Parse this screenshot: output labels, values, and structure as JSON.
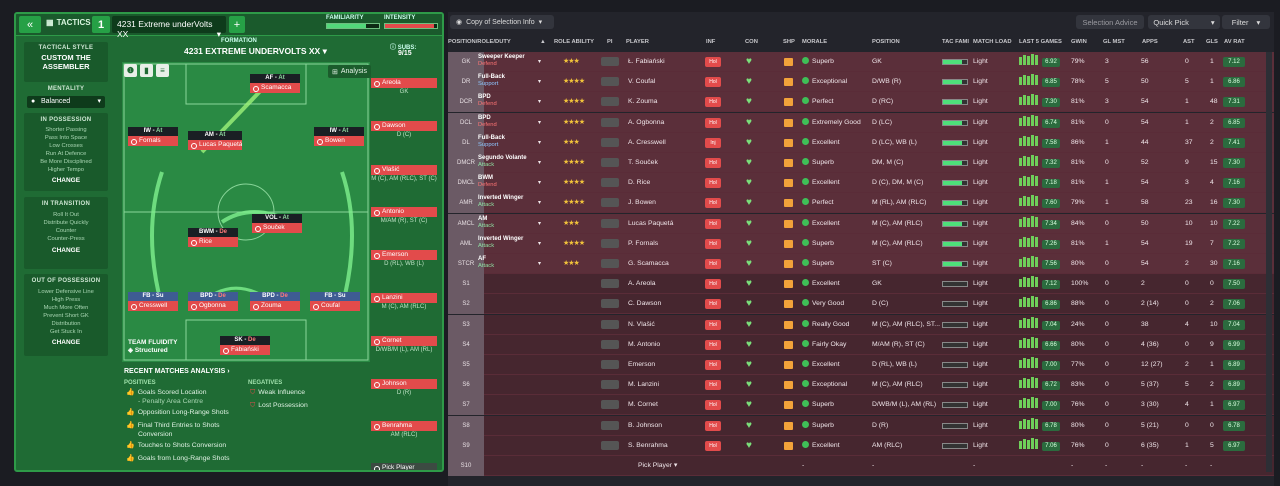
{
  "topbar": {
    "back_label": "«",
    "tactics_label": "TACTICS",
    "tactic_number": "1",
    "tactic_name": "4231 Extreme underVolts XX",
    "add_label": "+",
    "familiarity_label": "FAMILIARITY",
    "intensity_label": "INTENSITY",
    "familiarity_level": 0.75,
    "intensity_level": 0.95
  },
  "sidebar": {
    "style_label": "TACTICAL STYLE",
    "style_name": "CUSTOM THE ASSEMBLER",
    "mentality_label": "MENTALITY",
    "mentality_value": "Balanced",
    "in_possession": {
      "title": "IN POSSESSION",
      "items": [
        "Shorter Passing",
        "Pass Into Space",
        "Low Crosses",
        "Run At Defence",
        "Be More Disciplined",
        "Higher Tempo"
      ],
      "change": "CHANGE"
    },
    "in_transition": {
      "title": "IN TRANSITION",
      "items": [
        "Roll It Out",
        "Distribute Quickly",
        "Counter",
        "Counter-Press"
      ],
      "change": "CHANGE"
    },
    "out_of_possession": {
      "title": "OUT OF POSSESSION",
      "items": [
        "Lower Defensive Line",
        "High Press",
        "Much More Often",
        "Prevent Short GK",
        "Distribution",
        "Get Stuck In"
      ],
      "change": "CHANGE"
    }
  },
  "formation": {
    "label": "FORMATION",
    "name": "4231 EXTREME UNDERVOLTS XX",
    "subs_label": "SUBS:",
    "subs_count": "9/15",
    "analysis_label": "Analysis",
    "team_fluidity_label": "TEAM FLUIDITY",
    "team_fluidity_value": "Structured",
    "players": [
      {
        "role": "AF",
        "duty": "At",
        "name": "Scamacca"
      },
      {
        "role": "IW",
        "duty": "At",
        "name": "Fornals"
      },
      {
        "role": "AM",
        "duty": "At",
        "name": "Lucas Paquetá"
      },
      {
        "role": "IW",
        "duty": "At",
        "name": "Bowen"
      },
      {
        "role": "BWM",
        "duty": "De",
        "name": "Rice"
      },
      {
        "role": "VOL",
        "duty": "At",
        "name": "Souček"
      },
      {
        "role": "FB",
        "duty": "Su",
        "name": "Cresswell"
      },
      {
        "role": "BPD",
        "duty": "De",
        "name": "Ogbonna"
      },
      {
        "role": "BPD",
        "duty": "De",
        "name": "Zouma"
      },
      {
        "role": "FB",
        "duty": "Su",
        "name": "Coufal"
      },
      {
        "role": "SK",
        "duty": "De",
        "name": "Fabiański"
      }
    ],
    "subs": [
      {
        "name": "Areola",
        "pos": "GK"
      },
      {
        "name": "Dawson",
        "pos": "D (C)"
      },
      {
        "name": "Vlašić",
        "pos": "M (C), AM (RLC), ST (C)"
      },
      {
        "name": "Antonio",
        "pos": "M/AM (R), ST (C)"
      },
      {
        "name": "Emerson",
        "pos": "D (RL), WB (L)"
      },
      {
        "name": "Lanzini",
        "pos": "M (C), AM (RLC)"
      },
      {
        "name": "Cornet",
        "pos": "D/WB/M (L), AM (RL)"
      },
      {
        "name": "Johnson",
        "pos": "D (R)"
      },
      {
        "name": "Benrahma",
        "pos": "AM (RLC)"
      },
      {
        "name": "Pick Player",
        "pos": ""
      }
    ]
  },
  "analysis": {
    "title": "RECENT MATCHES ANALYSIS",
    "positives_label": "POSITIVES",
    "negatives_label": "NEGATIVES",
    "positives": [
      "Goals Scored Location",
      "- Penalty Area Centre",
      "Opposition Long-Range Shots",
      "Final Third Entries to Shots",
      "Conversion",
      "Touches to Shots Conversion",
      "Goals from Long-Range Shots"
    ],
    "negatives": [
      "Weak Influence",
      "Lost Possession"
    ]
  },
  "right": {
    "copy_label": "Copy of Selection Info",
    "advice_label": "Selection Advice",
    "quickpick_label": "Quick Pick",
    "filter_label": "Filter",
    "headers": {
      "pos": "POSITION/ROLE/DUTY",
      "ability": "ROLE ABILITY",
      "pi": "PI",
      "player": "PLAYER",
      "inf": "INF",
      "con": "CON",
      "shp": "SHP",
      "morale": "MORALE",
      "position": "POSITION",
      "tacfam": "TAC FAMI",
      "load": "MATCH LOAD",
      "last5": "LAST 5 GAMES",
      "gwin": "GWIN",
      "glmst": "GL MST",
      "apps": "APPS",
      "ast": "AST",
      "gls": "GLS",
      "avrat": "AV RAT"
    },
    "rows": [
      {
        "pos": "GK",
        "role": "Sweeper Keeper",
        "duty": "Defend",
        "dutyc": "def",
        "stars": "★★★",
        "player": "Ł. Fabiański",
        "inf": "Hol",
        "morale": "Superb",
        "position": "GK",
        "tacfam": 0.8,
        "load": "Light",
        "last5r": "6.92",
        "gwin": "79%",
        "glmst": "3",
        "apps": "56",
        "ast": "0",
        "gls": "1",
        "av": "7.12"
      },
      {
        "pos": "DR",
        "role": "Full-Back",
        "duty": "Support",
        "dutyc": "sup",
        "stars": "★★★★",
        "player": "V. Coufal",
        "inf": "Hol",
        "morale": "Exceptional",
        "position": "D/WB (R)",
        "tacfam": 0.8,
        "load": "Light",
        "last5r": "6.85",
        "gwin": "78%",
        "glmst": "5",
        "apps": "50",
        "ast": "5",
        "gls": "1",
        "av": "6.86"
      },
      {
        "pos": "DCR",
        "role": "BPD",
        "duty": "Defend",
        "dutyc": "def",
        "stars": "★★★★",
        "player": "K. Zouma",
        "inf": "Hol",
        "morale": "Perfect",
        "position": "D (RC)",
        "tacfam": 0.8,
        "load": "Light",
        "last5r": "7.30",
        "gwin": "81%",
        "glmst": "3",
        "apps": "54",
        "ast": "1",
        "gls": "48",
        "av": "7.31"
      },
      {
        "pos": "DCL",
        "role": "BPD",
        "duty": "Defend",
        "dutyc": "def",
        "stars": "★★★★",
        "player": "A. Ogbonna",
        "inf": "Hol",
        "morale": "Extremely Good",
        "position": "D (LC)",
        "tacfam": 0.8,
        "load": "Light",
        "last5r": "6.74",
        "gwin": "81%",
        "glmst": "0",
        "apps": "54",
        "ast": "1",
        "gls": "2",
        "av": "6.85"
      },
      {
        "pos": "DL",
        "role": "Full-Back",
        "duty": "Support",
        "dutyc": "sup",
        "stars": "★★★",
        "player": "A. Cresswell",
        "inf": "Inj",
        "morale": "Excellent",
        "position": "D (LC), WB (L)",
        "tacfam": 0.8,
        "load": "Light",
        "last5r": "7.58",
        "gwin": "86%",
        "glmst": "1",
        "apps": "44",
        "ast": "37",
        "gls": "2",
        "av": "7.41"
      },
      {
        "pos": "DMCR",
        "role": "Segundo Volante",
        "duty": "Attack",
        "dutyc": "att",
        "stars": "★★★★",
        "player": "T. Souček",
        "inf": "Hol",
        "morale": "Superb",
        "position": "DM, M (C)",
        "tacfam": 0.8,
        "load": "Light",
        "last5r": "7.32",
        "gwin": "81%",
        "glmst": "0",
        "apps": "52",
        "ast": "9",
        "gls": "15",
        "av": "7.30"
      },
      {
        "pos": "DMCL",
        "role": "BWM",
        "duty": "Defend",
        "dutyc": "def",
        "stars": "★★★★",
        "player": "D. Rice",
        "inf": "Hol",
        "morale": "Excellent",
        "position": "D (C), DM, M (C)",
        "tacfam": 0.8,
        "load": "Light",
        "last5r": "7.18",
        "gwin": "81%",
        "glmst": "1",
        "apps": "54",
        "ast": "3",
        "gls": "4",
        "av": "7.16"
      },
      {
        "pos": "AMR",
        "role": "Inverted Winger",
        "duty": "Attack",
        "dutyc": "att",
        "stars": "★★★★",
        "player": "J. Bowen",
        "inf": "Hol",
        "morale": "Perfect",
        "position": "M (RL), AM (RLC)",
        "tacfam": 0.8,
        "load": "Light",
        "last5r": "7.60",
        "gwin": "79%",
        "glmst": "1",
        "apps": "58",
        "ast": "23",
        "gls": "16",
        "av": "7.30"
      },
      {
        "pos": "AMCL",
        "role": "AM",
        "duty": "Attack",
        "dutyc": "att",
        "stars": "★★★",
        "player": "Lucas Paquetá",
        "inf": "Hol",
        "morale": "Excellent",
        "position": "M (C), AM (RLC)",
        "tacfam": 0.8,
        "load": "Light",
        "last5r": "7.34",
        "gwin": "84%",
        "glmst": "0",
        "apps": "50",
        "ast": "10",
        "gls": "10",
        "av": "7.22"
      },
      {
        "pos": "AML",
        "role": "Inverted Winger",
        "duty": "Attack",
        "dutyc": "att",
        "stars": "★★★★",
        "player": "P. Fornals",
        "inf": "Hol",
        "morale": "Superb",
        "position": "M (C), AM (RLC)",
        "tacfam": 0.8,
        "load": "Light",
        "last5r": "7.26",
        "gwin": "81%",
        "glmst": "1",
        "apps": "54",
        "ast": "19",
        "gls": "7",
        "av": "7.22"
      },
      {
        "pos": "STCR",
        "role": "AF",
        "duty": "Attack",
        "dutyc": "att",
        "stars": "★★★",
        "player": "G. Scamacca",
        "inf": "Hol",
        "morale": "Superb",
        "position": "ST (C)",
        "tacfam": 0.8,
        "load": "Light",
        "last5r": "7.56",
        "gwin": "80%",
        "glmst": "0",
        "apps": "54",
        "ast": "2",
        "gls": "30",
        "av": "7.16"
      },
      {
        "pos": "S1",
        "role": "",
        "duty": "",
        "dutyc": "",
        "stars": "",
        "player": "A. Areola",
        "inf": "Hol",
        "morale": "Excellent",
        "position": "GK",
        "tacfam": 0.0,
        "load": "Light",
        "last5r": "7.12",
        "gwin": "100%",
        "glmst": "0",
        "apps": "2",
        "ast": "0",
        "gls": "0",
        "av": "7.50"
      },
      {
        "pos": "S2",
        "role": "",
        "duty": "",
        "dutyc": "",
        "stars": "",
        "player": "C. Dawson",
        "inf": "Hol",
        "morale": "Very Good",
        "position": "D (C)",
        "tacfam": 0.0,
        "load": "Light",
        "last5r": "6.86",
        "gwin": "88%",
        "glmst": "0",
        "apps": "2 (14)",
        "ast": "0",
        "gls": "2",
        "av": "7.06"
      },
      {
        "pos": "S3",
        "role": "",
        "duty": "",
        "dutyc": "",
        "stars": "",
        "player": "N. Vlašić",
        "inf": "Hol",
        "morale": "Really Good",
        "position": "M (C), AM (RLC), ST...",
        "tacfam": 0.0,
        "load": "Light",
        "last5r": "7.04",
        "gwin": "24%",
        "glmst": "0",
        "apps": "38",
        "ast": "4",
        "gls": "10",
        "av": "7.04"
      },
      {
        "pos": "S4",
        "role": "",
        "duty": "",
        "dutyc": "",
        "stars": "",
        "player": "M. Antonio",
        "inf": "Hol",
        "morale": "Fairly Okay",
        "position": "M/AM (R), ST (C)",
        "tacfam": 0.0,
        "load": "Light",
        "last5r": "6.66",
        "gwin": "80%",
        "glmst": "0",
        "apps": "4 (36)",
        "ast": "0",
        "gls": "9",
        "av": "6.99"
      },
      {
        "pos": "S5",
        "role": "",
        "duty": "",
        "dutyc": "",
        "stars": "",
        "player": "Emerson",
        "inf": "Hol",
        "morale": "Excellent",
        "position": "D (RL), WB (L)",
        "tacfam": 0.0,
        "load": "Light",
        "last5r": "7.00",
        "gwin": "77%",
        "glmst": "0",
        "apps": "12 (27)",
        "ast": "2",
        "gls": "1",
        "av": "6.89"
      },
      {
        "pos": "S6",
        "role": "",
        "duty": "",
        "dutyc": "",
        "stars": "",
        "player": "M. Lanzini",
        "inf": "Hol",
        "morale": "Exceptional",
        "position": "M (C), AM (RLC)",
        "tacfam": 0.0,
        "load": "Light",
        "last5r": "6.72",
        "gwin": "83%",
        "glmst": "0",
        "apps": "5 (37)",
        "ast": "5",
        "gls": "2",
        "av": "6.89"
      },
      {
        "pos": "S7",
        "role": "",
        "duty": "",
        "dutyc": "",
        "stars": "",
        "player": "M. Cornet",
        "inf": "Hol",
        "morale": "Superb",
        "position": "D/WB/M (L), AM (RL)",
        "tacfam": 0.0,
        "load": "Light",
        "last5r": "7.00",
        "gwin": "76%",
        "glmst": "0",
        "apps": "3 (30)",
        "ast": "4",
        "gls": "1",
        "av": "6.97"
      },
      {
        "pos": "S8",
        "role": "",
        "duty": "",
        "dutyc": "",
        "stars": "",
        "player": "B. Johnson",
        "inf": "Hol",
        "morale": "Superb",
        "position": "D (R)",
        "tacfam": 0.0,
        "load": "Light",
        "last5r": "6.78",
        "gwin": "80%",
        "glmst": "0",
        "apps": "5 (21)",
        "ast": "0",
        "gls": "0",
        "av": "6.78"
      },
      {
        "pos": "S9",
        "role": "",
        "duty": "",
        "dutyc": "",
        "stars": "",
        "player": "S. Benrahma",
        "inf": "Hol",
        "morale": "Excellent",
        "position": "AM (RLC)",
        "tacfam": 0.0,
        "load": "Light",
        "last5r": "7.06",
        "gwin": "76%",
        "glmst": "0",
        "apps": "6 (35)",
        "ast": "1",
        "gls": "5",
        "av": "6.97"
      },
      {
        "pos": "S10",
        "role": "",
        "duty": "",
        "dutyc": "",
        "stars": "",
        "player": "Pick Player",
        "inf": "",
        "morale": "-",
        "position": "-",
        "tacfam": 0.0,
        "load": "-",
        "last5r": "",
        "gwin": "-",
        "glmst": "-",
        "apps": "-",
        "ast": "-",
        "gls": "-",
        "av": ""
      }
    ]
  }
}
